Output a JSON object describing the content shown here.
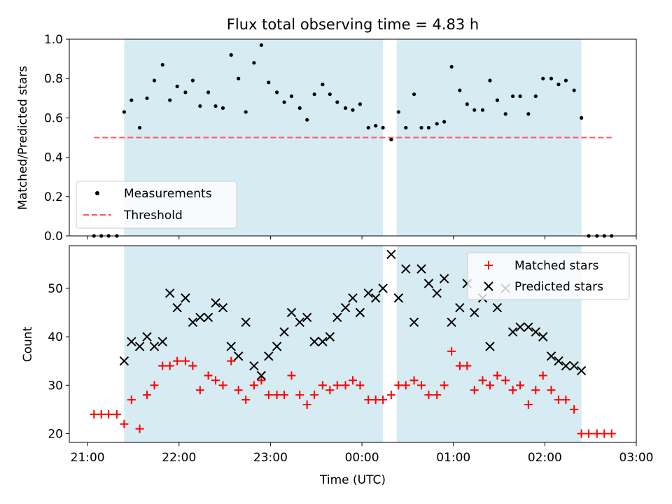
{
  "colors": {
    "shade": "#add8e6",
    "measurement": "#000000",
    "threshold": "#ff5a5a",
    "matched": "#ff0000",
    "predicted": "#000000"
  },
  "chart_data": [
    {
      "type": "scatter",
      "title": "Flux total observing time = 4.83 h",
      "ylabel": "Matched/Predicted stars",
      "xlabel": "",
      "ylim": [
        0,
        1.0
      ],
      "yticks": [
        "0.0",
        "0.2",
        "0.4",
        "0.6",
        "0.8",
        "1.0"
      ],
      "xlim_hours": [
        20.8,
        27.0
      ],
      "shaded_intervals": [
        [
          21.4,
          24.23
        ],
        [
          24.38,
          26.4
        ]
      ],
      "threshold": {
        "name": "Threshold",
        "y": 0.5,
        "x_range": [
          21.07,
          26.73
        ]
      },
      "legend": {
        "position": "lower-left",
        "entries": [
          "Measurements",
          "Threshold"
        ]
      },
      "series": [
        {
          "name": "Measurements",
          "x": [
            21.07,
            21.15,
            21.23,
            21.32,
            21.4,
            21.48,
            21.57,
            21.65,
            21.73,
            21.82,
            21.9,
            21.98,
            22.07,
            22.15,
            22.23,
            22.32,
            22.4,
            22.48,
            22.57,
            22.65,
            22.73,
            22.82,
            22.9,
            22.98,
            23.07,
            23.15,
            23.23,
            23.32,
            23.4,
            23.48,
            23.57,
            23.65,
            23.73,
            23.82,
            23.9,
            23.98,
            24.07,
            24.15,
            24.23,
            24.32,
            24.4,
            24.48,
            24.57,
            24.65,
            24.73,
            24.82,
            24.9,
            24.98,
            25.07,
            25.15,
            25.23,
            25.32,
            25.4,
            25.48,
            25.57,
            25.65,
            25.73,
            25.82,
            25.9,
            25.98,
            26.07,
            26.15,
            26.23,
            26.32,
            26.4,
            26.48,
            26.57,
            26.65,
            26.73
          ],
          "y": [
            0.0,
            0.0,
            0.0,
            0.0,
            0.63,
            0.69,
            0.55,
            0.7,
            0.79,
            0.87,
            0.69,
            0.76,
            0.73,
            0.79,
            0.66,
            0.73,
            0.66,
            0.65,
            0.92,
            0.8,
            0.63,
            0.88,
            0.97,
            0.78,
            0.73,
            0.68,
            0.71,
            0.65,
            0.59,
            0.72,
            0.77,
            0.72,
            0.68,
            0.65,
            0.64,
            0.67,
            0.55,
            0.56,
            0.55,
            0.49,
            0.63,
            0.55,
            0.72,
            0.55,
            0.55,
            0.57,
            0.58,
            0.86,
            0.74,
            0.67,
            0.64,
            0.64,
            0.79,
            0.69,
            0.62,
            0.71,
            0.71,
            0.62,
            0.71,
            0.8,
            0.8,
            0.77,
            0.79,
            0.74,
            0.6,
            0.0,
            0.0,
            0.0,
            0.0
          ]
        }
      ]
    },
    {
      "type": "scatter",
      "title": "",
      "ylabel": "Count",
      "xlabel": "Time (UTC)",
      "ylim": [
        18.2,
        58.8
      ],
      "yticks": [
        "20",
        "30",
        "40",
        "50"
      ],
      "xticks": [
        "21:00",
        "22:00",
        "23:00",
        "00:00",
        "01:00",
        "02:00",
        "03:00"
      ],
      "xlim_hours": [
        20.8,
        27.0
      ],
      "shaded_intervals": [
        [
          21.4,
          24.23
        ],
        [
          24.38,
          26.4
        ]
      ],
      "legend": {
        "position": "top-right",
        "entries": [
          "Matched stars",
          "Predicted stars"
        ]
      },
      "series": [
        {
          "name": "Matched stars",
          "marker": "plus",
          "x": [
            21.07,
            21.15,
            21.23,
            21.32,
            21.4,
            21.48,
            21.57,
            21.65,
            21.73,
            21.82,
            21.9,
            21.98,
            22.07,
            22.15,
            22.23,
            22.32,
            22.4,
            22.48,
            22.57,
            22.65,
            22.73,
            22.82,
            22.9,
            22.98,
            23.07,
            23.15,
            23.23,
            23.32,
            23.4,
            23.48,
            23.57,
            23.65,
            23.73,
            23.82,
            23.9,
            23.98,
            24.07,
            24.15,
            24.23,
            24.32,
            24.4,
            24.48,
            24.57,
            24.65,
            24.73,
            24.82,
            24.9,
            24.98,
            25.07,
            25.15,
            25.23,
            25.32,
            25.4,
            25.48,
            25.57,
            25.65,
            25.73,
            25.82,
            25.9,
            25.98,
            26.07,
            26.15,
            26.23,
            26.32,
            26.4,
            26.48,
            26.57,
            26.65,
            26.73
          ],
          "y": [
            24,
            24,
            24,
            24,
            22,
            27,
            21,
            28,
            30,
            34,
            34,
            35,
            35,
            34,
            29,
            32,
            31,
            30,
            35,
            29,
            27,
            30,
            31,
            28,
            28,
            28,
            32,
            28,
            26,
            28,
            30,
            29,
            30,
            30,
            31,
            30,
            27,
            27,
            27,
            28,
            30,
            30,
            31,
            30,
            28,
            28,
            30,
            37,
            34,
            34,
            29,
            31,
            30,
            32,
            31,
            29,
            30,
            26,
            29,
            32,
            29,
            27,
            27,
            25,
            20,
            20,
            20,
            20,
            20
          ]
        },
        {
          "name": "Predicted stars",
          "marker": "x",
          "x": [
            21.4,
            21.48,
            21.57,
            21.65,
            21.73,
            21.82,
            21.9,
            21.98,
            22.07,
            22.15,
            22.23,
            22.32,
            22.4,
            22.48,
            22.57,
            22.65,
            22.73,
            22.82,
            22.9,
            22.98,
            23.07,
            23.15,
            23.23,
            23.32,
            23.4,
            23.48,
            23.57,
            23.65,
            23.73,
            23.82,
            23.9,
            23.98,
            24.07,
            24.15,
            24.23,
            24.32,
            24.4,
            24.48,
            24.57,
            24.65,
            24.73,
            24.82,
            24.9,
            24.98,
            25.07,
            25.15,
            25.23,
            25.32,
            25.4,
            25.48,
            25.57,
            25.65,
            25.73,
            25.82,
            25.9,
            25.98,
            26.07,
            26.15,
            26.23,
            26.32,
            26.4
          ],
          "y": [
            35,
            39,
            38,
            40,
            38,
            39,
            49,
            46,
            48,
            43,
            44,
            44,
            47,
            46,
            38,
            36,
            43,
            34,
            32,
            36,
            38,
            41,
            45,
            43,
            44,
            39,
            39,
            40,
            44,
            46,
            48,
            45,
            49,
            48,
            50,
            57,
            48,
            54,
            43,
            54,
            51,
            49,
            52,
            43,
            46,
            51,
            45,
            48,
            38,
            46,
            50,
            41,
            42,
            42,
            41,
            40,
            36,
            35,
            34,
            34,
            33
          ]
        }
      ]
    }
  ]
}
